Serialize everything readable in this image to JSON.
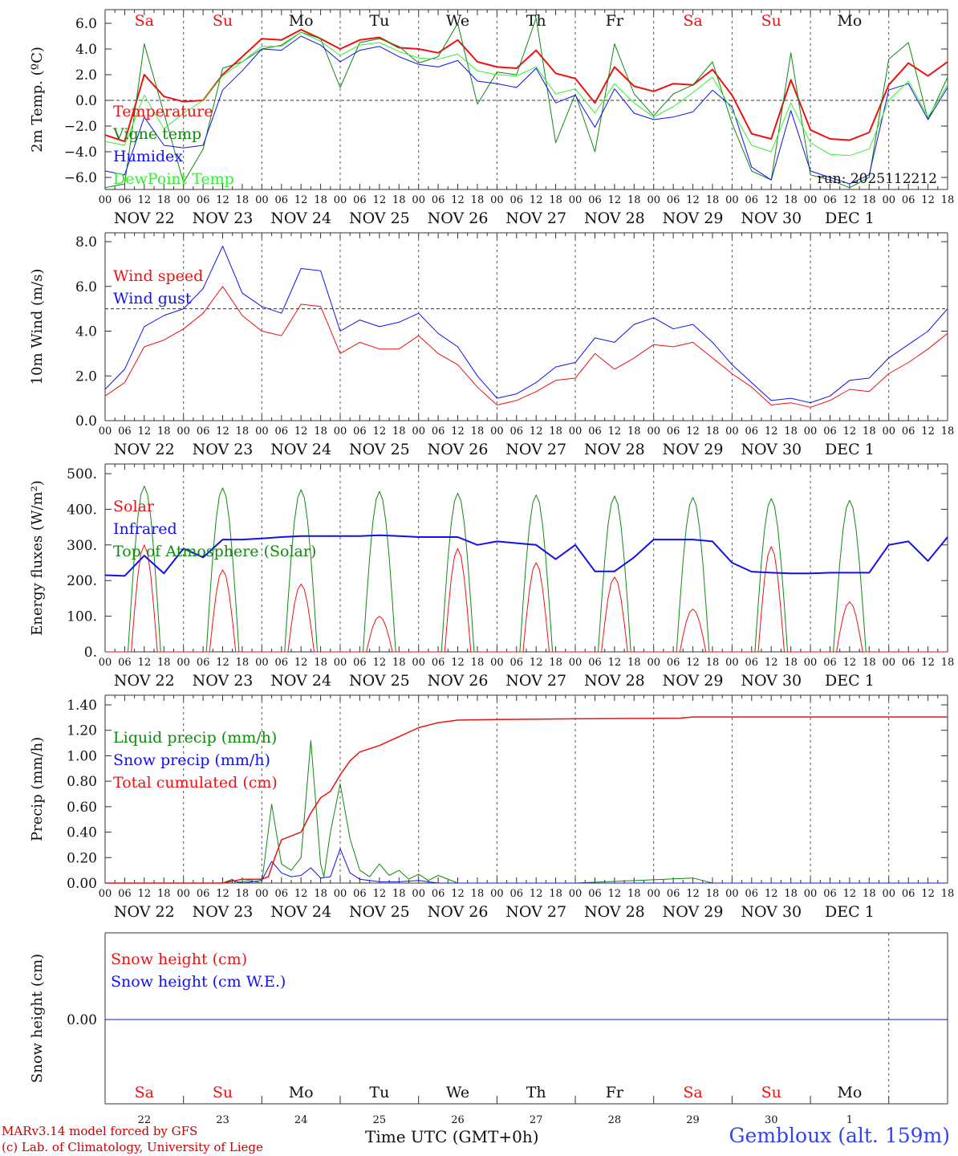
{
  "figure": {
    "credit_line1": "MARv3.14 model forced by GFS",
    "credit_line2": "(c) Lab. of Climatology, University of Liege",
    "xlabel": "Time UTC (GMT+0h)",
    "station": "Gembloux (alt. 159m)",
    "run_label": "run: 2025112212",
    "colors": {
      "red": "#ee1111",
      "green": "#118811",
      "blue": "#1111ee",
      "lightgreen": "#33ee33",
      "axis": "#333333"
    },
    "day_names": [
      "Sa",
      "Su",
      "Mo",
      "Tu",
      "We",
      "Th",
      "Fr",
      "Sa",
      "Su",
      "Mo"
    ],
    "weekend_flags": [
      true,
      true,
      false,
      false,
      false,
      false,
      false,
      true,
      true,
      false
    ],
    "date_labels": [
      "NOV 22",
      "NOV 23",
      "NOV 24",
      "NOV 25",
      "NOV 26",
      "NOV 27",
      "NOV 28",
      "NOV 29",
      "NOV 30",
      "DEC  1"
    ],
    "day_numbers": [
      "22",
      "23",
      "24",
      "25",
      "26",
      "27",
      "28",
      "29",
      "30",
      "1"
    ],
    "hour_ticks": [
      "00",
      "06",
      "12",
      "18"
    ]
  },
  "chart_data": [
    {
      "id": "temperature",
      "type": "line",
      "ylabel": "2m Temp. (ºC)",
      "ylim": [
        -7,
        7
      ],
      "yticks": [
        "6.0",
        "4.0",
        "2.0",
        "0.0",
        "−2.0",
        "−4.0",
        "−6.0"
      ],
      "ytick_values": [
        6,
        4,
        2,
        0,
        -2,
        -4,
        -6
      ],
      "reference_line": 0,
      "x_unit": "hours since Nov 22 00 UTC",
      "series": [
        {
          "name": "Temperature",
          "color": "#ee1111",
          "width": 2,
          "x": [
            0,
            6,
            12,
            18,
            24,
            30,
            36,
            42,
            48,
            54,
            60,
            66,
            72,
            78,
            84,
            90,
            96,
            102,
            108,
            114,
            120,
            126,
            132,
            138,
            144,
            150,
            156,
            162,
            168,
            174,
            180,
            186,
            192,
            198,
            204,
            210,
            216,
            222,
            228,
            234,
            240,
            246,
            252,
            258
          ],
          "y": [
            -2.7,
            -3.2,
            2.0,
            0.3,
            -0.1,
            0.0,
            2.0,
            3.4,
            4.8,
            4.7,
            5.5,
            4.8,
            4.0,
            4.7,
            4.9,
            4.1,
            4.0,
            3.7,
            4.7,
            3.0,
            2.6,
            2.5,
            3.9,
            2.1,
            1.7,
            -0.2,
            2.6,
            1.1,
            0.7,
            1.3,
            1.2,
            2.4,
            0.4,
            -2.6,
            -3.0,
            1.6,
            -2.3,
            -3.0,
            -3.1,
            -2.5,
            1.2,
            2.9,
            1.9,
            3.0
          ]
        },
        {
          "name": "Vigne temp",
          "color": "#118811",
          "width": 1,
          "x": [
            0,
            6,
            12,
            18,
            24,
            30,
            36,
            42,
            48,
            54,
            60,
            66,
            72,
            78,
            84,
            90,
            96,
            102,
            108,
            114,
            120,
            126,
            132,
            138,
            144,
            150,
            156,
            162,
            168,
            174,
            180,
            186,
            192,
            198,
            204,
            210,
            216,
            222,
            228,
            234,
            240,
            246,
            252,
            258
          ],
          "y": [
            -6.8,
            -6.5,
            4.4,
            -1.0,
            -6.4,
            -3.8,
            2.5,
            3.0,
            4.0,
            4.3,
            5.3,
            4.8,
            1.0,
            4.5,
            4.8,
            4.2,
            2.9,
            3.4,
            6.0,
            -0.3,
            2.2,
            2.0,
            6.4,
            -3.3,
            0.5,
            -4.0,
            4.4,
            0.5,
            -1.2,
            0.5,
            1.2,
            3.0,
            -1.8,
            -5.5,
            -6.2,
            3.7,
            -5.8,
            -6.2,
            -6.8,
            -6.0,
            3.2,
            4.5,
            -1.5,
            1.8
          ]
        },
        {
          "name": "Humidex",
          "color": "#1111ee",
          "width": 1,
          "x": [
            0,
            6,
            12,
            18,
            24,
            30,
            36,
            42,
            48,
            54,
            60,
            66,
            72,
            78,
            84,
            90,
            96,
            102,
            108,
            114,
            120,
            126,
            132,
            138,
            144,
            150,
            156,
            162,
            168,
            174,
            180,
            186,
            192,
            198,
            204,
            210,
            216,
            222,
            228,
            234,
            240,
            246,
            252,
            258
          ],
          "y": [
            -5.5,
            -5.8,
            -1.3,
            -3.5,
            -3.7,
            -3.5,
            0.8,
            2.3,
            4.0,
            3.9,
            5.0,
            4.3,
            3.0,
            3.9,
            4.2,
            3.4,
            2.8,
            2.6,
            3.1,
            1.5,
            1.3,
            1.0,
            2.5,
            -0.2,
            0.4,
            -2.1,
            0.9,
            -1.0,
            -1.5,
            -1.3,
            -0.9,
            0.8,
            -0.5,
            -5.2,
            -6.2,
            -0.8,
            -5.5,
            -6.0,
            -6.5,
            -5.8,
            0.8,
            1.3,
            -1.5,
            1.0
          ]
        },
        {
          "name": "DewPoint Temp",
          "color": "#33ee33",
          "width": 1,
          "x": [
            0,
            6,
            12,
            18,
            24,
            30,
            36,
            42,
            48,
            54,
            60,
            66,
            72,
            78,
            84,
            90,
            96,
            102,
            108,
            114,
            120,
            126,
            132,
            138,
            144,
            150,
            156,
            162,
            168,
            174,
            180,
            186,
            192,
            198,
            204,
            210,
            216,
            222,
            228,
            234,
            240,
            246,
            252,
            258
          ],
          "y": [
            -3.2,
            -3.5,
            0.4,
            -2.2,
            -1.0,
            0.0,
            1.9,
            3.0,
            4.2,
            4.2,
            5.3,
            4.6,
            3.5,
            4.3,
            4.5,
            3.8,
            3.3,
            3.2,
            3.6,
            2.3,
            2.0,
            1.9,
            2.6,
            0.5,
            0.9,
            -1.0,
            1.3,
            -0.2,
            -1.3,
            -0.5,
            0.6,
            1.8,
            -0.8,
            -3.5,
            -4.0,
            -0.2,
            -3.3,
            -4.2,
            -4.3,
            -3.8,
            0.0,
            1.5,
            -1.3,
            1.2
          ]
        }
      ]
    },
    {
      "id": "wind",
      "type": "line",
      "ylabel": "10m Wind (m/s)",
      "ylim": [
        0,
        8.2
      ],
      "yticks": [
        "8.0",
        "6.0",
        "4.0",
        "2.0",
        "0.0"
      ],
      "ytick_values": [
        8,
        6,
        4,
        2,
        0
      ],
      "reference_line": 5,
      "x_unit": "hours since Nov 22 00 UTC",
      "series": [
        {
          "name": "Wind speed",
          "color": "#ee1111",
          "width": 1,
          "x": [
            0,
            6,
            12,
            18,
            24,
            30,
            36,
            42,
            48,
            54,
            60,
            66,
            72,
            78,
            84,
            90,
            96,
            102,
            108,
            114,
            120,
            126,
            132,
            138,
            144,
            150,
            156,
            162,
            168,
            174,
            180,
            186,
            192,
            198,
            204,
            210,
            216,
            222,
            228,
            234,
            240,
            246,
            252,
            258
          ],
          "y": [
            1.1,
            1.7,
            3.3,
            3.6,
            4.1,
            4.8,
            6.0,
            4.7,
            4.0,
            3.8,
            5.2,
            5.1,
            3.0,
            3.5,
            3.2,
            3.2,
            3.8,
            3.0,
            2.5,
            1.5,
            0.7,
            0.9,
            1.3,
            1.8,
            1.9,
            3.0,
            2.3,
            2.8,
            3.4,
            3.3,
            3.5,
            2.8,
            2.1,
            1.5,
            0.7,
            0.8,
            0.6,
            0.9,
            1.4,
            1.3,
            2.1,
            2.6,
            3.2,
            3.9
          ]
        },
        {
          "name": "Wind gust",
          "color": "#1111ee",
          "width": 1,
          "x": [
            0,
            6,
            12,
            18,
            24,
            30,
            36,
            42,
            48,
            54,
            60,
            66,
            72,
            78,
            84,
            90,
            96,
            102,
            108,
            114,
            120,
            126,
            132,
            138,
            144,
            150,
            156,
            162,
            168,
            174,
            180,
            186,
            192,
            198,
            204,
            210,
            216,
            222,
            228,
            234,
            240,
            246,
            252,
            258
          ],
          "y": [
            1.4,
            2.3,
            4.2,
            4.7,
            5.0,
            5.9,
            7.8,
            5.7,
            5.1,
            4.8,
            6.8,
            6.7,
            4.0,
            4.5,
            4.2,
            4.4,
            4.8,
            3.9,
            3.3,
            2.0,
            1.0,
            1.2,
            1.7,
            2.4,
            2.6,
            3.7,
            3.5,
            4.3,
            4.6,
            4.1,
            4.3,
            3.5,
            2.5,
            1.7,
            0.9,
            1.0,
            0.8,
            1.1,
            1.8,
            1.9,
            2.8,
            3.4,
            4.0,
            5.0
          ]
        }
      ]
    },
    {
      "id": "energy",
      "type": "line",
      "ylabel": "Energy fluxes (W/m²)",
      "ylim": [
        0,
        500
      ],
      "yticks": [
        "500.",
        "400.",
        "300.",
        "200.",
        "100.",
        "0."
      ],
      "ytick_values": [
        500,
        400,
        300,
        200,
        100,
        0
      ],
      "x_unit": "hours since Nov 22 00 UTC",
      "daily_peaks": {
        "solar": [
          300,
          230,
          190,
          100,
          290,
          250,
          210,
          120,
          295,
          140
        ],
        "top_of_atmosphere": [
          465,
          460,
          455,
          450,
          445,
          440,
          437,
          433,
          430,
          425
        ]
      },
      "series": [
        {
          "name": "Solar",
          "color": "#ee1111",
          "width": 1
        },
        {
          "name": "Infrared",
          "color": "#1111ee",
          "width": 2,
          "x": [
            0,
            6,
            12,
            18,
            24,
            30,
            36,
            42,
            48,
            54,
            60,
            66,
            72,
            78,
            84,
            90,
            96,
            102,
            108,
            114,
            120,
            126,
            132,
            138,
            144,
            150,
            156,
            162,
            168,
            174,
            180,
            186,
            192,
            198,
            204,
            210,
            216,
            222,
            228,
            234,
            240,
            246,
            252,
            258
          ],
          "y": [
            215,
            213,
            270,
            220,
            290,
            265,
            315,
            315,
            318,
            322,
            325,
            325,
            325,
            325,
            327,
            325,
            322,
            322,
            322,
            300,
            310,
            305,
            300,
            260,
            300,
            226,
            226,
            265,
            315,
            315,
            315,
            310,
            250,
            225,
            222,
            220,
            220,
            222,
            222,
            222,
            300,
            310,
            255,
            322
          ]
        },
        {
          "name": "Top of Atmosphere (Solar)",
          "color": "#118811",
          "width": 1
        }
      ]
    },
    {
      "id": "precip",
      "type": "line",
      "ylabel": "Precip (mm/h)",
      "ylim": [
        0,
        1.4
      ],
      "yticks": [
        "1.40",
        "1.20",
        "1.00",
        "0.80",
        "0.60",
        "0.40",
        "0.20",
        "0.00"
      ],
      "ytick_values": [
        1.4,
        1.2,
        1.0,
        0.8,
        0.6,
        0.4,
        0.2,
        0
      ],
      "x_unit": "hours since Nov 22 00 UTC",
      "series": [
        {
          "name": "Liquid precip (mm/h)",
          "color": "#118811",
          "width": 1,
          "x": [
            0,
            36,
            39,
            40,
            44,
            48,
            51,
            54,
            57,
            60,
            63,
            66,
            67,
            69,
            72,
            75,
            78,
            81,
            84,
            87,
            90,
            93,
            96,
            99,
            102,
            108,
            120,
            144,
            180,
            183,
            186,
            258
          ],
          "y": [
            0,
            0,
            0.03,
            0,
            0.02,
            0,
            0.62,
            0.15,
            0.1,
            0.2,
            1.12,
            0.15,
            0.05,
            0.4,
            0.78,
            0.35,
            0.1,
            0.05,
            0.15,
            0.06,
            0.1,
            0.03,
            0.07,
            0.02,
            0.06,
            0,
            0,
            0,
            0.04,
            0.02,
            0,
            0
          ]
        },
        {
          "name": "Snow precip (mm/h)",
          "color": "#1111ee",
          "width": 1,
          "x": [
            0,
            36,
            39,
            42,
            48,
            51,
            54,
            57,
            60,
            63,
            66,
            69,
            72,
            75,
            78,
            84,
            90,
            96,
            102,
            258
          ],
          "y": [
            0,
            0,
            0.02,
            0,
            0.02,
            0.17,
            0.08,
            0.05,
            0.06,
            0.12,
            0.04,
            0.05,
            0.27,
            0.08,
            0.03,
            0.01,
            0.01,
            0.02,
            0,
            0
          ]
        },
        {
          "name": "Total cumulated (cm)",
          "color": "#ee1111",
          "width": 1.5,
          "x": [
            0,
            36,
            40,
            42,
            48,
            50,
            52,
            54,
            56,
            60,
            63,
            66,
            69,
            72,
            75,
            78,
            84,
            90,
            96,
            102,
            108,
            120,
            144,
            176,
            180,
            258
          ],
          "y": [
            0,
            0,
            0.02,
            0.03,
            0.03,
            0.05,
            0.2,
            0.34,
            0.36,
            0.4,
            0.55,
            0.67,
            0.72,
            0.85,
            0.96,
            1.03,
            1.08,
            1.15,
            1.22,
            1.26,
            1.28,
            1.285,
            1.29,
            1.295,
            1.305,
            1.305
          ]
        }
      ]
    },
    {
      "id": "snow",
      "type": "line",
      "ylabel": "Snow height (cm)",
      "ylim": [
        -1,
        1
      ],
      "yticks": [
        "0.00"
      ],
      "ytick_values": [
        0
      ],
      "x_unit": "hours since Nov 22 00 UTC",
      "series": [
        {
          "name": "Snow height (cm)",
          "color": "#ee1111",
          "width": 1,
          "x": [
            0,
            258
          ],
          "y": [
            0,
            0
          ]
        },
        {
          "name": "Snow height (cm W.E.)",
          "color": "#1111ee",
          "width": 1,
          "x": [
            0,
            258
          ],
          "y": [
            0,
            0
          ]
        }
      ]
    }
  ]
}
